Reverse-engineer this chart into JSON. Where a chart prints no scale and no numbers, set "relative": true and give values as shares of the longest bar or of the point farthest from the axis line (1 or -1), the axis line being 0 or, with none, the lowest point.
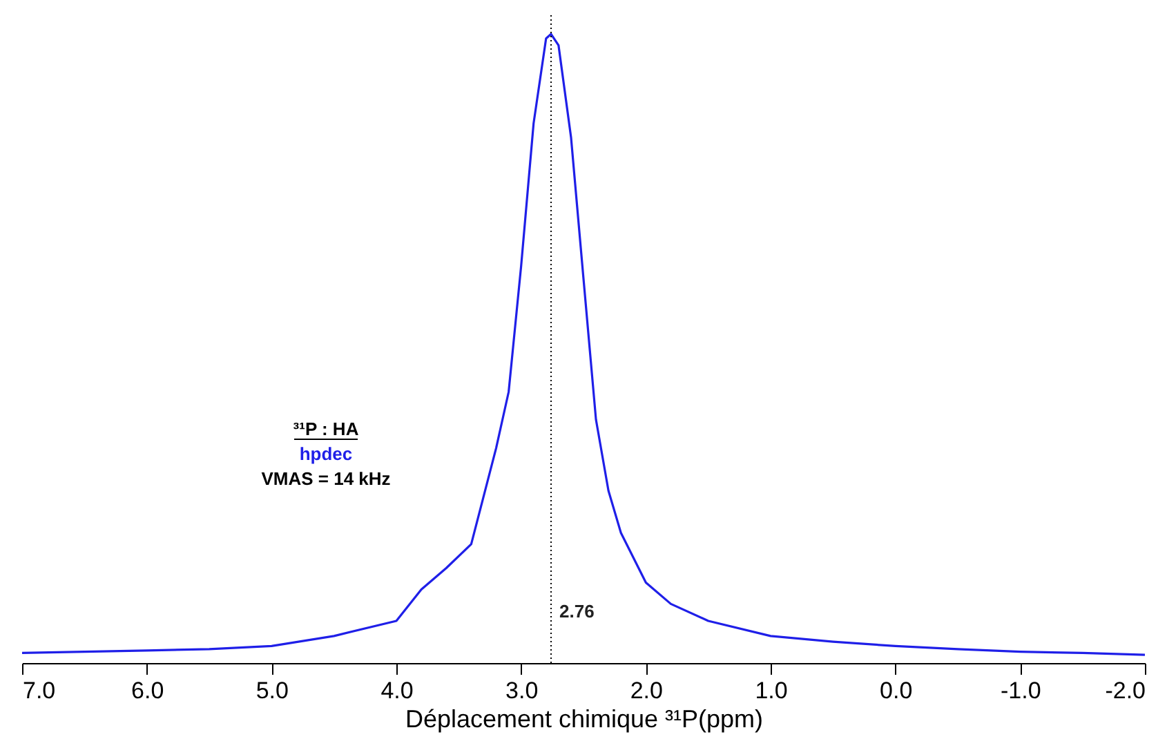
{
  "chart_data": {
    "type": "line",
    "relative": true,
    "xlabel": "Déplacement chimique ³¹P(ppm)",
    "xlim": [
      7,
      -2
    ],
    "xticks": [
      {
        "value": 7,
        "label": "7.0"
      },
      {
        "value": 6,
        "label": "6.0"
      },
      {
        "value": 5,
        "label": "5.0"
      },
      {
        "value": 4,
        "label": "4.0"
      },
      {
        "value": 3,
        "label": "3.0"
      },
      {
        "value": 2,
        "label": "2.0"
      },
      {
        "value": 1,
        "label": "1.0"
      },
      {
        "value": 0,
        "label": "0.0"
      },
      {
        "value": -1,
        "label": "-1.0"
      },
      {
        "value": -2,
        "label": "-2.0"
      }
    ],
    "tick_labels": "x",
    "grid": false,
    "marker": "none",
    "line_style": "solid",
    "series": [
      {
        "color": "#1f1fe8",
        "x": [
          7.0,
          6.5,
          6.0,
          5.5,
          5.0,
          4.5,
          4.0,
          3.8,
          3.6,
          3.4,
          3.2,
          3.1,
          3.0,
          2.9,
          2.8,
          2.76,
          2.7,
          2.6,
          2.5,
          2.4,
          2.3,
          2.2,
          2.0,
          1.8,
          1.5,
          1.0,
          0.5,
          0.0,
          -0.5,
          -1.0,
          -1.5,
          -2.0
        ],
        "values": [
          0.016,
          0.018,
          0.02,
          0.022,
          0.027,
          0.043,
          0.067,
          0.117,
          0.151,
          0.189,
          0.342,
          0.431,
          0.631,
          0.858,
          0.993,
          1,
          0.982,
          0.836,
          0.611,
          0.387,
          0.274,
          0.207,
          0.128,
          0.094,
          0.067,
          0.043,
          0.034,
          0.027,
          0.022,
          0.018,
          0.016,
          0.013
        ]
      }
    ],
    "ref_lines": [
      {
        "axis": "x",
        "value": 2.76,
        "label": "2.76",
        "line_style": "dotted",
        "color": "#000000"
      }
    ],
    "annotations": [
      "³¹P : HA",
      "hpdec",
      "VMAS = 14 kHz"
    ]
  }
}
